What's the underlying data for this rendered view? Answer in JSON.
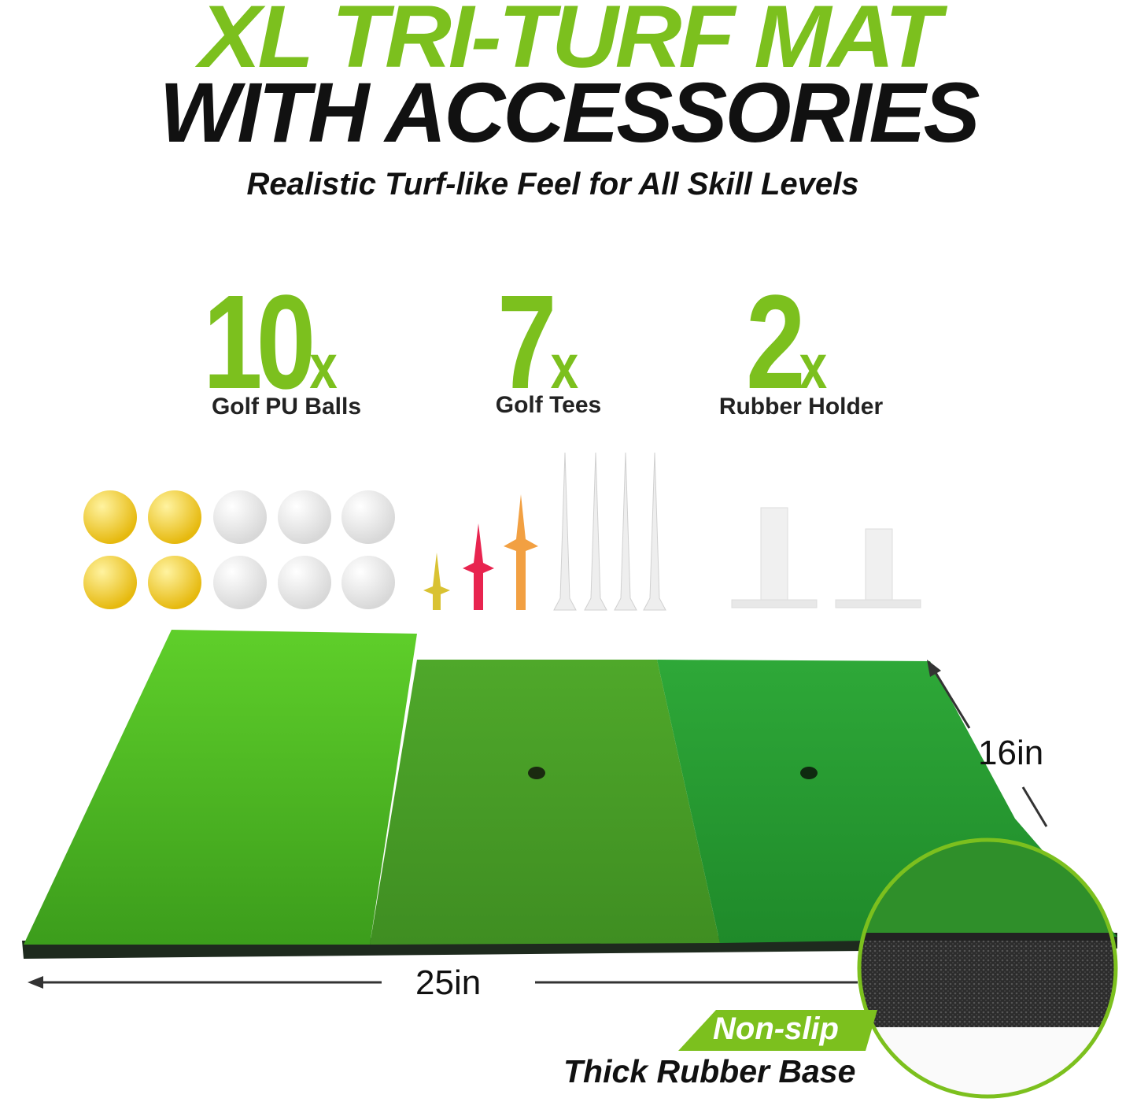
{
  "colors": {
    "accent": "#7cc01e",
    "text": "#111111",
    "ball_yellow": "#f2c81e",
    "ball_white": "#f2f2f2"
  },
  "headline": {
    "line1": "XL TRI-TURF MAT",
    "line2": "WITH ACCESSORIES",
    "subtitle": "Realistic Turf-like Feel for All Skill Levels"
  },
  "accessories": [
    {
      "count": "10",
      "suffix": "x",
      "label": "Golf PU Balls"
    },
    {
      "count": "7",
      "suffix": "x",
      "label": "Golf Tees"
    },
    {
      "count": "2",
      "suffix": "x",
      "label": "Rubber Holder"
    }
  ],
  "dimensions": {
    "width": "25in",
    "depth": "16in"
  },
  "base_callout": {
    "badge": "Non-slip",
    "caption": "Thick Rubber Base"
  }
}
